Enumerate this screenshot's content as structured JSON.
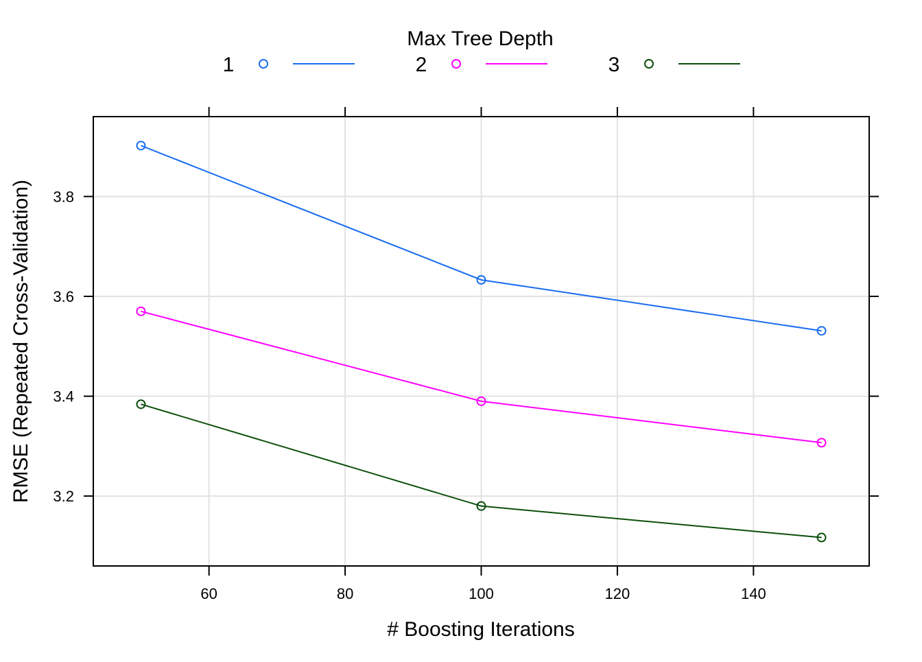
{
  "chart_data": {
    "type": "line",
    "legend": {
      "title": "Max Tree Depth",
      "placement": "top"
    },
    "xlabel": "# Boosting Iterations",
    "ylabel": "RMSE (Repeated Cross-Validation)",
    "xlim": [
      43,
      157
    ],
    "ylim": [
      3.06,
      3.96
    ],
    "x_ticks": [
      60,
      80,
      100,
      120,
      140
    ],
    "y_ticks": [
      3.2,
      3.4,
      3.6,
      3.8
    ],
    "x_tick_labels": [
      "60",
      "80",
      "100",
      "120",
      "140"
    ],
    "y_tick_labels": [
      "3.2",
      "3.4",
      "3.6",
      "3.8"
    ],
    "grid": true,
    "x": [
      50,
      100,
      150
    ],
    "series": [
      {
        "name": "1",
        "color": "#1a6ef0",
        "values": [
          3.902,
          3.633,
          3.531
        ]
      },
      {
        "name": "2",
        "color": "#ff00ff",
        "values": [
          3.57,
          3.39,
          3.307
        ]
      },
      {
        "name": "3",
        "color": "#0b4f0b",
        "values": [
          3.384,
          3.18,
          3.117
        ]
      }
    ]
  }
}
